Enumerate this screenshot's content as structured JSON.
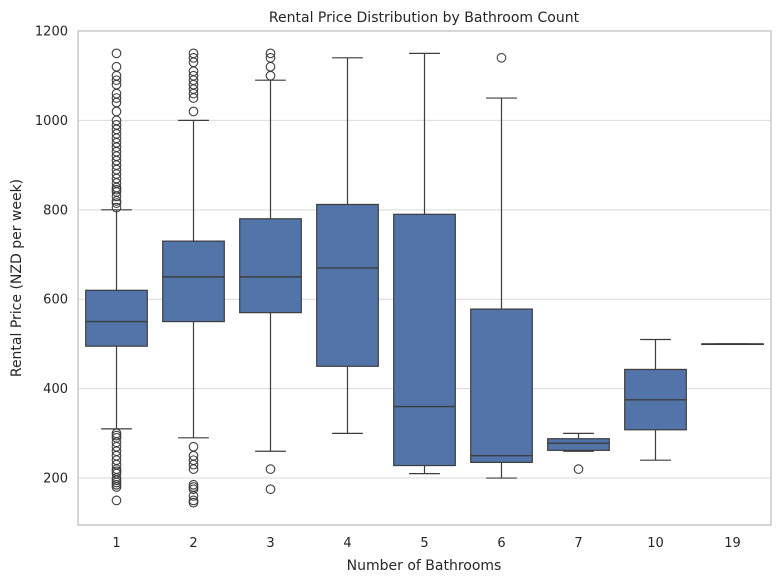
{
  "chart_data": {
    "type": "box",
    "title": "Rental Price Distribution by Bathroom Count",
    "xlabel": "Number of Bathrooms",
    "ylabel": "Rental Price (NZD per week)",
    "ylim": [
      95,
      1200
    ],
    "yticks": [
      200,
      400,
      600,
      800,
      1000,
      1200
    ],
    "grid": true,
    "box_color": "#5274a8",
    "edge_color": "#3d3d3d",
    "grid_color": "#d9d9d9",
    "categories": [
      "1",
      "2",
      "3",
      "4",
      "5",
      "6",
      "7",
      "10",
      "19"
    ],
    "boxes": [
      {
        "category": "1",
        "whisker_low": 310,
        "q1": 495,
        "median": 550,
        "q3": 620,
        "whisker_high": 800,
        "outliers": [
          150,
          180,
          185,
          190,
          195,
          200,
          210,
          215,
          220,
          230,
          240,
          250,
          260,
          270,
          280,
          290,
          295,
          300,
          805,
          815,
          820,
          830,
          840,
          845,
          850,
          860,
          870,
          880,
          890,
          900,
          910,
          920,
          930,
          940,
          950,
          960,
          970,
          980,
          990,
          1000,
          1020,
          1040,
          1050,
          1060,
          1080,
          1090,
          1100,
          1120,
          1150
        ]
      },
      {
        "category": "2",
        "whisker_low": 290,
        "q1": 550,
        "median": 650,
        "q3": 730,
        "whisker_high": 1000,
        "outliers": [
          145,
          150,
          160,
          175,
          180,
          185,
          220,
          230,
          240,
          250,
          270,
          1020,
          1050,
          1060,
          1070,
          1080,
          1090,
          1100,
          1110,
          1130,
          1140,
          1150
        ]
      },
      {
        "category": "3",
        "whisker_low": 260,
        "q1": 570,
        "median": 650,
        "q3": 780,
        "whisker_high": 1090,
        "outliers": [
          175,
          220,
          1100,
          1120,
          1140,
          1150
        ]
      },
      {
        "category": "4",
        "whisker_low": 300,
        "q1": 450,
        "median": 670,
        "q3": 812,
        "whisker_high": 1140,
        "outliers": []
      },
      {
        "category": "5",
        "whisker_low": 210,
        "q1": 228,
        "median": 360,
        "q3": 790,
        "whisker_high": 1150,
        "outliers": []
      },
      {
        "category": "6",
        "whisker_low": 200,
        "q1": 235,
        "median": 250,
        "q3": 578,
        "whisker_high": 1050,
        "outliers": [
          1140
        ]
      },
      {
        "category": "7",
        "whisker_low": 260,
        "q1": 262,
        "median": 278,
        "q3": 288,
        "whisker_high": 300,
        "outliers": [
          220
        ]
      },
      {
        "category": "10",
        "whisker_low": 240,
        "q1": 308,
        "median": 375,
        "q3": 443,
        "whisker_high": 510,
        "outliers": []
      },
      {
        "category": "19",
        "whisker_low": 500,
        "q1": 500,
        "median": 500,
        "q3": 500,
        "whisker_high": 500,
        "outliers": []
      }
    ]
  }
}
